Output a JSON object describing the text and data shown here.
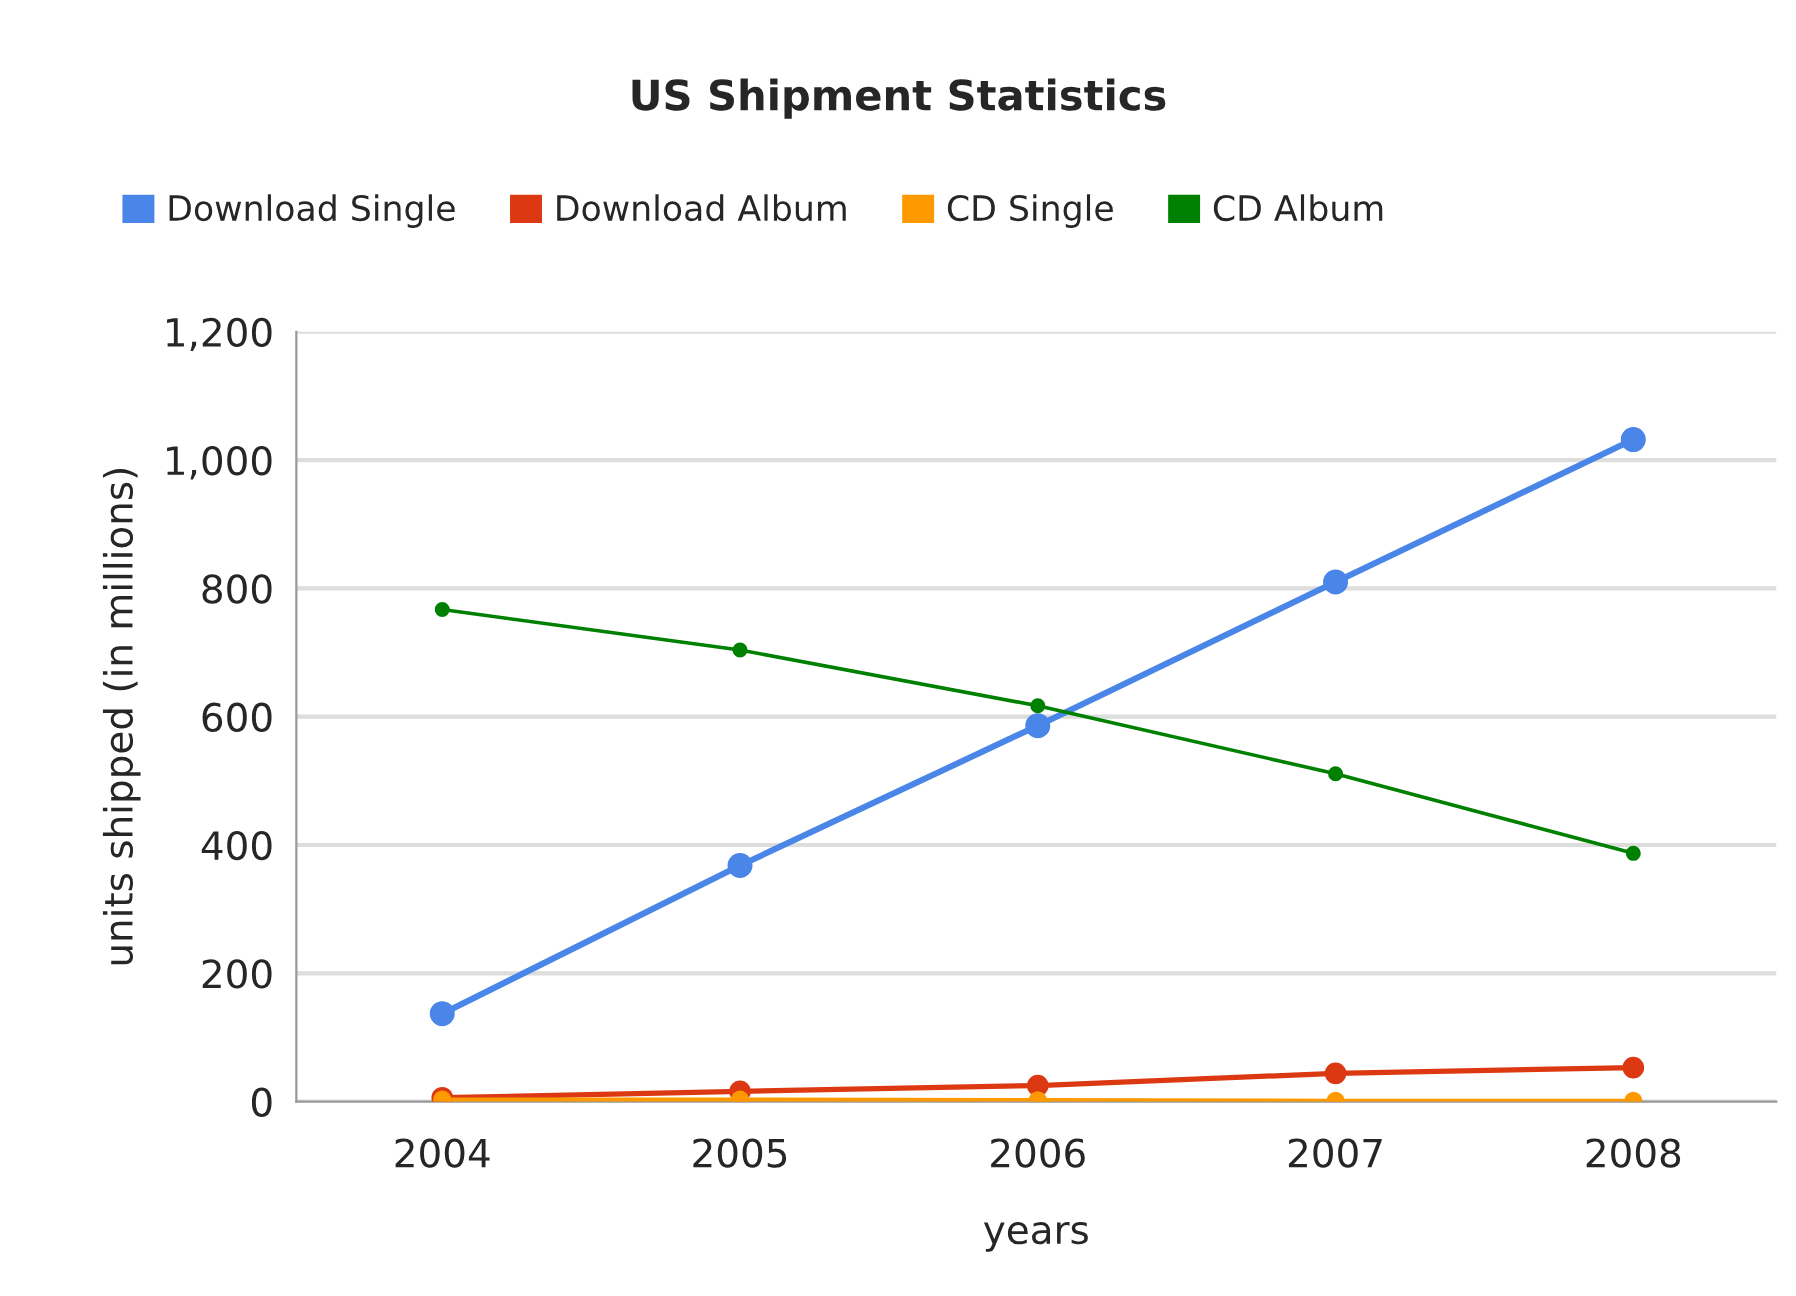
{
  "chart_data": {
    "type": "line",
    "title": "US Shipment Statistics",
    "xlabel": "years",
    "ylabel": "units shipped (in millions)",
    "categories": [
      "2004",
      "2005",
      "2006",
      "2007",
      "2008"
    ],
    "series": [
      {
        "name": "Download Single",
        "color": "#4a86e8",
        "values": [
          137,
          368,
          586,
          810,
          1032
        ]
      },
      {
        "name": "Download Album",
        "color": "#dc3912",
        "values": [
          6,
          16,
          25,
          44,
          53
        ]
      },
      {
        "name": "CD Single",
        "color": "#ff9900",
        "values": [
          3,
          3,
          2,
          1,
          1
        ]
      },
      {
        "name": "CD Album",
        "color": "#008000",
        "values": [
          767,
          704,
          617,
          511,
          387
        ]
      }
    ],
    "ylim": [
      0,
      1200
    ],
    "yticks": [
      0,
      {
        "value": 200,
        "label": "200"
      },
      {
        "value": 400,
        "label": "400"
      },
      {
        "value": 600,
        "label": "600"
      },
      {
        "value": 800,
        "label": "800"
      },
      {
        "value": 1000,
        "label": "1,000"
      },
      {
        "value": 1200,
        "label": "1,200"
      }
    ],
    "grid": "y",
    "legend": "top",
    "marker": "circle",
    "line_style": "solid"
  }
}
